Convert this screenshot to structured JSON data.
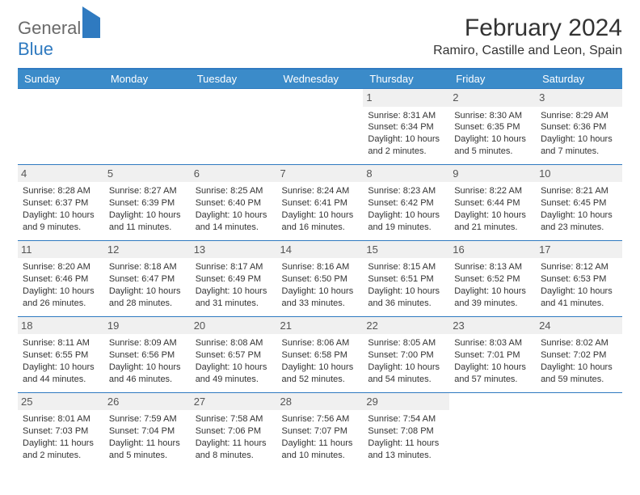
{
  "brand": {
    "part1": "General",
    "part2": "Blue"
  },
  "title": "February 2024",
  "location": "Ramiro, Castille and Leon, Spain",
  "colors": {
    "header_bg": "#3b8bc9",
    "header_text": "#ffffff",
    "border": "#2f7ac0",
    "daynum_bg": "#f0f0f0",
    "text": "#333333"
  },
  "weekdays": [
    "Sunday",
    "Monday",
    "Tuesday",
    "Wednesday",
    "Thursday",
    "Friday",
    "Saturday"
  ],
  "weeks": [
    [
      null,
      null,
      null,
      null,
      {
        "n": "1",
        "sr": "8:31 AM",
        "ss": "6:34 PM",
        "dl": "10 hours and 2 minutes."
      },
      {
        "n": "2",
        "sr": "8:30 AM",
        "ss": "6:35 PM",
        "dl": "10 hours and 5 minutes."
      },
      {
        "n": "3",
        "sr": "8:29 AM",
        "ss": "6:36 PM",
        "dl": "10 hours and 7 minutes."
      }
    ],
    [
      {
        "n": "4",
        "sr": "8:28 AM",
        "ss": "6:37 PM",
        "dl": "10 hours and 9 minutes."
      },
      {
        "n": "5",
        "sr": "8:27 AM",
        "ss": "6:39 PM",
        "dl": "10 hours and 11 minutes."
      },
      {
        "n": "6",
        "sr": "8:25 AM",
        "ss": "6:40 PM",
        "dl": "10 hours and 14 minutes."
      },
      {
        "n": "7",
        "sr": "8:24 AM",
        "ss": "6:41 PM",
        "dl": "10 hours and 16 minutes."
      },
      {
        "n": "8",
        "sr": "8:23 AM",
        "ss": "6:42 PM",
        "dl": "10 hours and 19 minutes."
      },
      {
        "n": "9",
        "sr": "8:22 AM",
        "ss": "6:44 PM",
        "dl": "10 hours and 21 minutes."
      },
      {
        "n": "10",
        "sr": "8:21 AM",
        "ss": "6:45 PM",
        "dl": "10 hours and 23 minutes."
      }
    ],
    [
      {
        "n": "11",
        "sr": "8:20 AM",
        "ss": "6:46 PM",
        "dl": "10 hours and 26 minutes."
      },
      {
        "n": "12",
        "sr": "8:18 AM",
        "ss": "6:47 PM",
        "dl": "10 hours and 28 minutes."
      },
      {
        "n": "13",
        "sr": "8:17 AM",
        "ss": "6:49 PM",
        "dl": "10 hours and 31 minutes."
      },
      {
        "n": "14",
        "sr": "8:16 AM",
        "ss": "6:50 PM",
        "dl": "10 hours and 33 minutes."
      },
      {
        "n": "15",
        "sr": "8:15 AM",
        "ss": "6:51 PM",
        "dl": "10 hours and 36 minutes."
      },
      {
        "n": "16",
        "sr": "8:13 AM",
        "ss": "6:52 PM",
        "dl": "10 hours and 39 minutes."
      },
      {
        "n": "17",
        "sr": "8:12 AM",
        "ss": "6:53 PM",
        "dl": "10 hours and 41 minutes."
      }
    ],
    [
      {
        "n": "18",
        "sr": "8:11 AM",
        "ss": "6:55 PM",
        "dl": "10 hours and 44 minutes."
      },
      {
        "n": "19",
        "sr": "8:09 AM",
        "ss": "6:56 PM",
        "dl": "10 hours and 46 minutes."
      },
      {
        "n": "20",
        "sr": "8:08 AM",
        "ss": "6:57 PM",
        "dl": "10 hours and 49 minutes."
      },
      {
        "n": "21",
        "sr": "8:06 AM",
        "ss": "6:58 PM",
        "dl": "10 hours and 52 minutes."
      },
      {
        "n": "22",
        "sr": "8:05 AM",
        "ss": "7:00 PM",
        "dl": "10 hours and 54 minutes."
      },
      {
        "n": "23",
        "sr": "8:03 AM",
        "ss": "7:01 PM",
        "dl": "10 hours and 57 minutes."
      },
      {
        "n": "24",
        "sr": "8:02 AM",
        "ss": "7:02 PM",
        "dl": "10 hours and 59 minutes."
      }
    ],
    [
      {
        "n": "25",
        "sr": "8:01 AM",
        "ss": "7:03 PM",
        "dl": "11 hours and 2 minutes."
      },
      {
        "n": "26",
        "sr": "7:59 AM",
        "ss": "7:04 PM",
        "dl": "11 hours and 5 minutes."
      },
      {
        "n": "27",
        "sr": "7:58 AM",
        "ss": "7:06 PM",
        "dl": "11 hours and 8 minutes."
      },
      {
        "n": "28",
        "sr": "7:56 AM",
        "ss": "7:07 PM",
        "dl": "11 hours and 10 minutes."
      },
      {
        "n": "29",
        "sr": "7:54 AM",
        "ss": "7:08 PM",
        "dl": "11 hours and 13 minutes."
      },
      null,
      null
    ]
  ],
  "labels": {
    "sunrise": "Sunrise: ",
    "sunset": "Sunset: ",
    "daylight": "Daylight: "
  }
}
